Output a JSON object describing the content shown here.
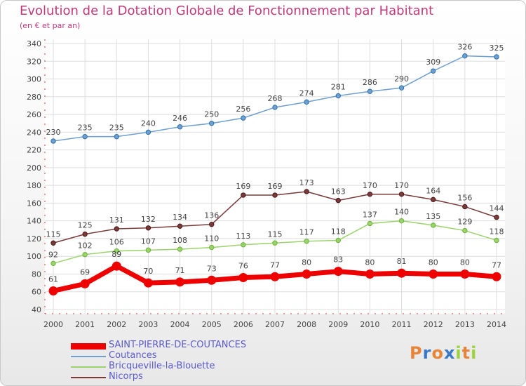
{
  "chart_data": {
    "type": "line",
    "title": "Evolution de la Dotation Globale de Fonctionnement par Habitant",
    "subtitle": "(en € et par an)",
    "xlabel": "",
    "ylabel": "",
    "ylim": [
      40,
      340
    ],
    "yticks": [
      40,
      60,
      80,
      100,
      120,
      140,
      160,
      180,
      200,
      220,
      240,
      260,
      280,
      300,
      320,
      340
    ],
    "categories": [
      "2000",
      "2001",
      "2002",
      "2003",
      "2004",
      "2005",
      "2006",
      "2007",
      "2008",
      "2009",
      "2010",
      "2011",
      "2012",
      "2013",
      "2014"
    ],
    "grid": true,
    "legend_position": "bottom-left",
    "series": [
      {
        "name": "SAINT-PIERRE-DE-COUTANCES",
        "color": "#ee0000",
        "values": [
          61,
          69,
          89,
          70,
          71,
          73,
          76,
          77,
          80,
          83,
          80,
          81,
          80,
          80,
          77
        ]
      },
      {
        "name": "Coutances",
        "color": "#6fa0cf",
        "values": [
          230,
          235,
          235,
          240,
          246,
          250,
          256,
          268,
          274,
          281,
          286,
          290,
          309,
          326,
          325
        ]
      },
      {
        "name": "Bricqueville-la-Blouette",
        "color": "#9ad36b",
        "values": [
          92,
          102,
          106,
          107,
          108,
          110,
          113,
          115,
          117,
          118,
          137,
          140,
          135,
          129,
          118
        ]
      },
      {
        "name": "Nicorps",
        "color": "#7a3a3a",
        "values": [
          115,
          125,
          131,
          132,
          134,
          136,
          169,
          169,
          173,
          163,
          170,
          170,
          164,
          156,
          144
        ]
      }
    ]
  },
  "brand": {
    "logo_text": "Proxiti",
    "letter_colors": [
      "#e8843a",
      "#3a78c8",
      "#e8843a",
      "#3a78c8",
      "#9ad33a",
      "#e8843a",
      "#9ad33a"
    ]
  }
}
